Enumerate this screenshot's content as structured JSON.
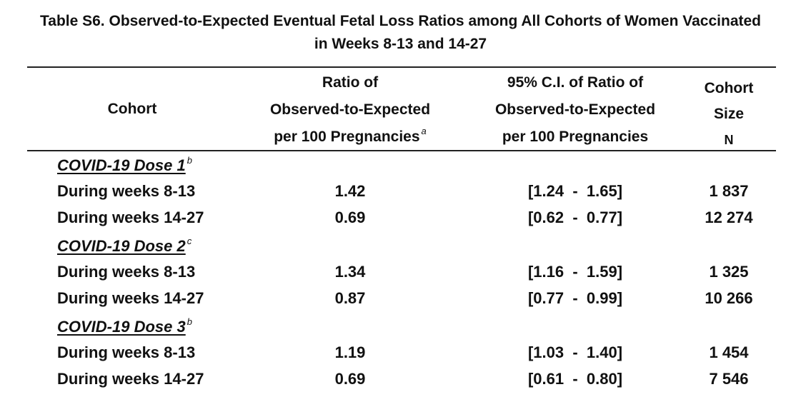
{
  "title": {
    "line1": "Table S6. Observed-to-Expected Eventual Fetal Loss Ratios among All Cohorts of Women Vaccinated",
    "line2": "in Weeks 8-13 and 14-27"
  },
  "headers": {
    "cohort": "Cohort",
    "ratio": [
      "Ratio of",
      "Observed-to-Expected",
      "per 100 Pregnancies"
    ],
    "ratio_sup": "a",
    "ci": [
      "95% C.I. of Ratio of",
      "Observed-to-Expected",
      "per 100 Pregnancies"
    ],
    "size": [
      "Cohort",
      "Size",
      "N"
    ]
  },
  "groups": [
    {
      "label": "COVID-19 Dose 1",
      "sup": "b",
      "rows": [
        {
          "cohort": "During weeks 8-13",
          "ratio": "1.42",
          "ci_low": "[1.24",
          "ci_sep": "-",
          "ci_high": "1.65]",
          "size": "1 837"
        },
        {
          "cohort": "During weeks 14-27",
          "ratio": "0.69",
          "ci_low": "[0.62",
          "ci_sep": "-",
          "ci_high": "0.77]",
          "size": "12 274"
        }
      ]
    },
    {
      "label": "COVID-19 Dose 2",
      "sup": "c",
      "rows": [
        {
          "cohort": "During weeks 8-13",
          "ratio": "1.34",
          "ci_low": "[1.16",
          "ci_sep": "-",
          "ci_high": "1.59]",
          "size": "1 325"
        },
        {
          "cohort": "During weeks 14-27",
          "ratio": "0.87",
          "ci_low": "[0.77",
          "ci_sep": "-",
          "ci_high": "0.99]",
          "size": "10 266"
        }
      ]
    },
    {
      "label": "COVID-19 Dose 3",
      "sup": "b",
      "rows": [
        {
          "cohort": "During weeks 8-13",
          "ratio": "1.19",
          "ci_low": "[1.03",
          "ci_sep": "-",
          "ci_high": "1.40]",
          "size": "1 454"
        },
        {
          "cohort": "During weeks 14-27",
          "ratio": "0.69",
          "ci_low": "[0.61",
          "ci_sep": "-",
          "ci_high": "0.80]",
          "size": "7 546"
        }
      ]
    }
  ]
}
